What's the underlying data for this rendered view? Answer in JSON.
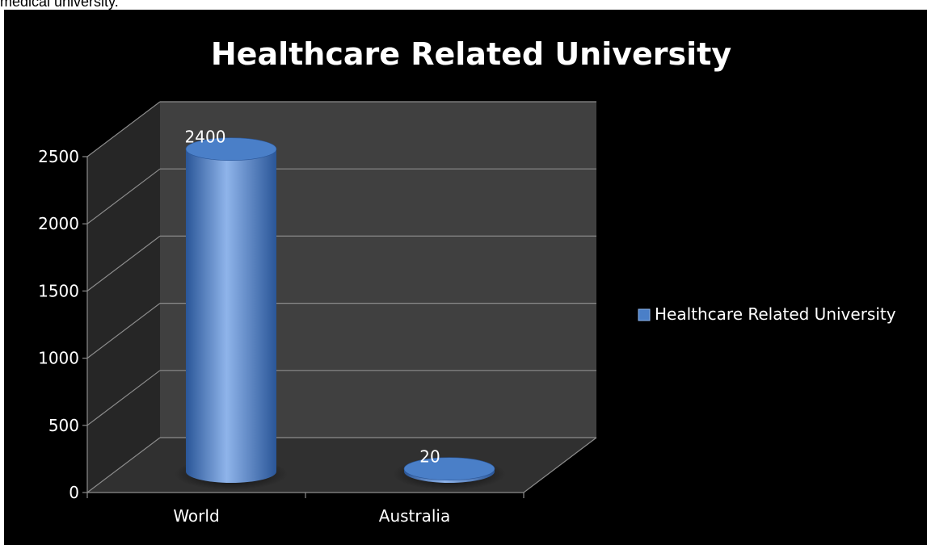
{
  "page": {
    "caption": "medical university."
  },
  "chart_data": {
    "type": "bar",
    "bar_shape": "cylinder-3d",
    "title": "Healthcare Related University",
    "categories": [
      "World",
      "Australia"
    ],
    "series": [
      {
        "name": "Healthcare Related University",
        "values": [
          2400,
          20
        ]
      }
    ],
    "data_labels": [
      "2400",
      "20"
    ],
    "ylim": [
      0,
      2500
    ],
    "yticks": [
      0,
      500,
      1000,
      1500,
      2000,
      2500
    ],
    "grid": true,
    "legend_position": "right",
    "colors": {
      "background": "#000000",
      "bar": "#4a7fc8",
      "bar_light": "#8fb4ea",
      "bar_dark": "#2a5698",
      "wall": "#404040",
      "side_wall": "#262626",
      "floor": "#303030",
      "grid": "#8c8c8c",
      "text": "#ffffff"
    }
  }
}
